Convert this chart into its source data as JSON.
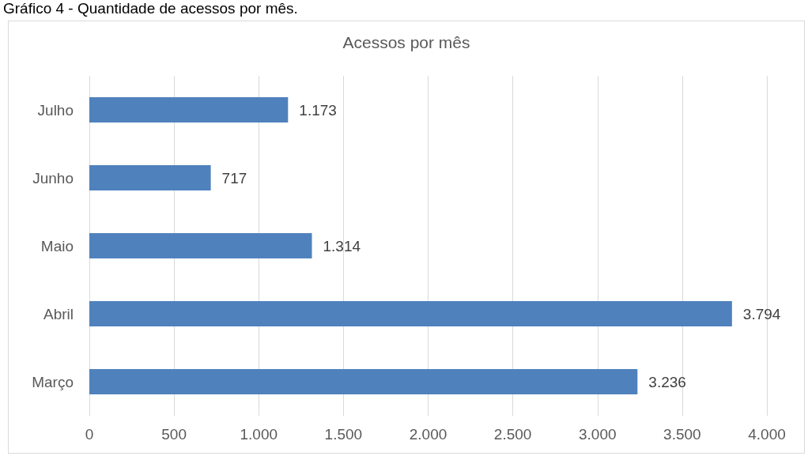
{
  "chart_data": {
    "type": "bar",
    "orientation": "horizontal",
    "title": "Acessos por mês",
    "annotations": [
      "Gráfico 4 - Quantidade de acessos por mês."
    ],
    "categories": [
      "Julho",
      "Junho",
      "Maio",
      "Abril",
      "Março"
    ],
    "values": [
      1173,
      717,
      1314,
      3794,
      3236
    ],
    "value_labels": [
      "1.173",
      "717",
      "1.314",
      "3.794",
      "3.236"
    ],
    "color": "#4f81bd",
    "xlim": [
      0,
      4000
    ],
    "xticks": [
      0,
      500,
      {
        "value": 1000,
        "label": "1.000"
      },
      {
        "value": 1500,
        "label": "1.500"
      },
      {
        "value": 2000,
        "label": "2.000"
      },
      {
        "value": 2500,
        "label": "2.500"
      },
      {
        "value": 3000,
        "label": "3.000"
      },
      {
        "value": 3500,
        "label": "3.500"
      },
      {
        "value": 4000,
        "label": "4.000"
      }
    ],
    "grid": "x"
  }
}
